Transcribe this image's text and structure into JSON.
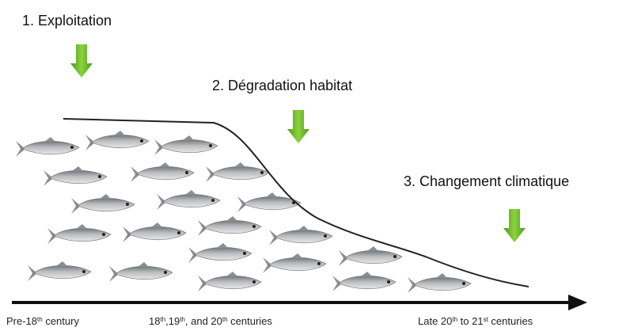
{
  "stages": [
    {
      "label": "1. Exploitation"
    },
    {
      "label": "2. Dégradation habitat"
    },
    {
      "label": "3. Changement climatique"
    }
  ],
  "timeline": [
    {
      "parts": [
        "Pre-18",
        "th",
        " century"
      ]
    },
    {
      "parts": [
        "18",
        "th",
        ",19",
        "th",
        ", and 20",
        "th",
        " centuries"
      ]
    },
    {
      "parts": [
        "Late 20",
        "th",
        " to 21",
        "st",
        " centuries"
      ]
    }
  ]
}
